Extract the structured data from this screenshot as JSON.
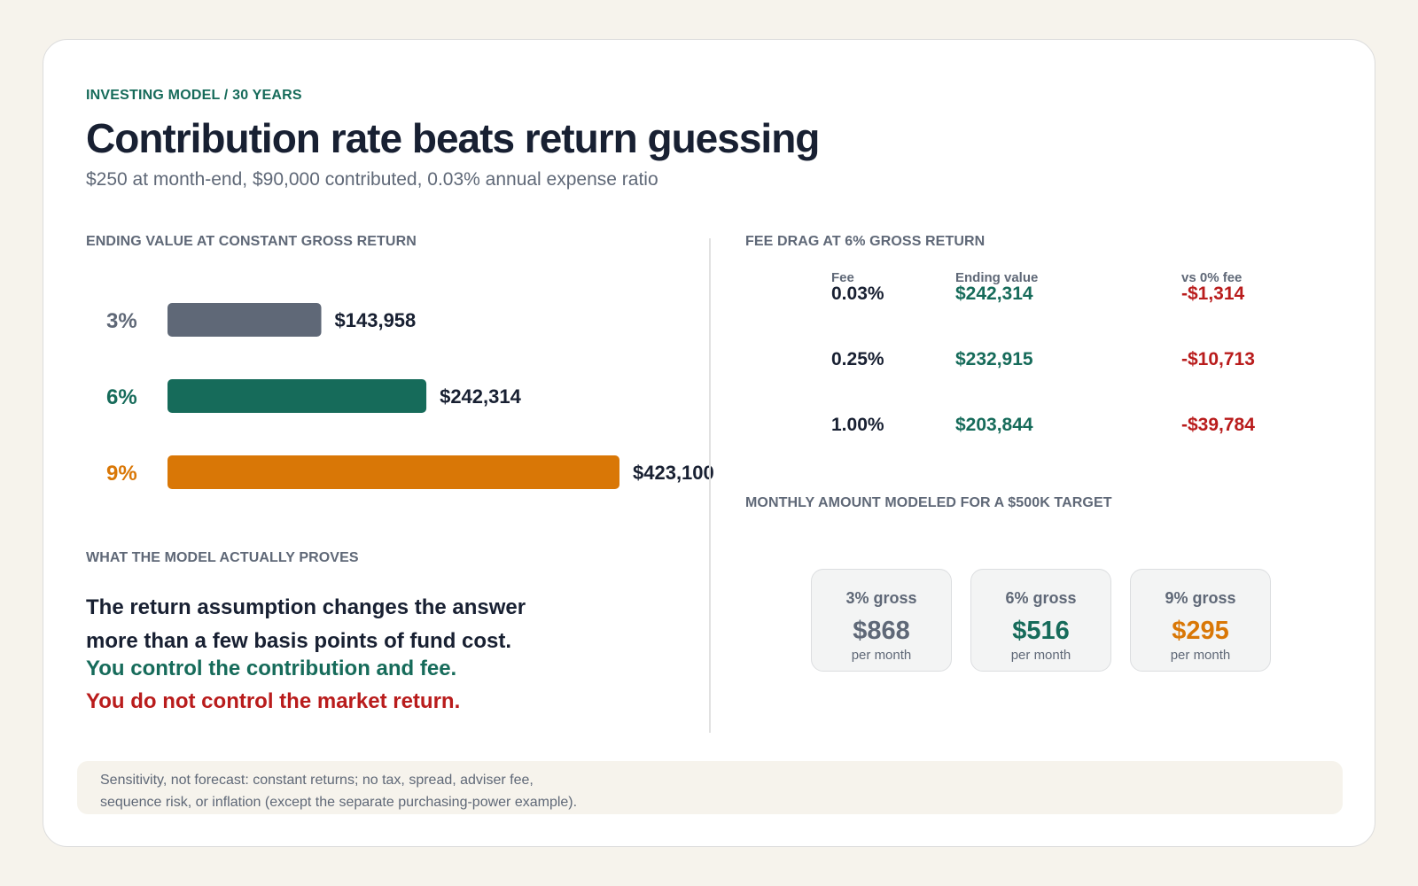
{
  "header": {
    "eyebrow": "INVESTING MODEL / 30 YEARS",
    "title": "Contribution rate beats return guessing",
    "subtitle": "$250 at month-end, $90,000 contributed, 0.03% annual expense ratio"
  },
  "colors": {
    "accent_green": "#166b5a",
    "slate": "#5f6877",
    "orange": "#d97706",
    "red": "#b91c1c",
    "ink": "#182032"
  },
  "chart_data": {
    "type": "bar",
    "title": "ENDING VALUE AT CONSTANT GROSS RETURN",
    "orientation": "horizontal",
    "categories": [
      "3%",
      "6%",
      "9%"
    ],
    "values": [
      143958,
      242314,
      423100
    ],
    "value_labels": [
      "$143,958",
      "$242,314",
      "$423,100"
    ],
    "bar_colors": [
      "#5f6877",
      "#166b5a",
      "#d97706"
    ],
    "xlim": [
      0,
      423100
    ],
    "grid": false
  },
  "fee_table": {
    "label": "FEE DRAG AT 6% GROSS RETURN",
    "headers": [
      "Fee",
      "Ending value",
      "vs 0% fee"
    ],
    "rows": [
      {
        "fee": "0.03%",
        "ending": "$242,314",
        "diff": "-$1,314"
      },
      {
        "fee": "0.25%",
        "ending": "$232,915",
        "diff": "-$10,713"
      },
      {
        "fee": "1.00%",
        "ending": "$203,844",
        "diff": "-$39,784"
      }
    ]
  },
  "monthly": {
    "label": "MONTHLY AMOUNT MODELED FOR A $500K TARGET",
    "cards": [
      {
        "label": "3% gross",
        "value": "$868",
        "unit": "per month"
      },
      {
        "label": "6% gross",
        "value": "$516",
        "unit": "per month"
      },
      {
        "label": "9% gross",
        "value": "$295",
        "unit": "per month"
      }
    ]
  },
  "proof": {
    "label": "WHAT THE MODEL ACTUALLY PROVES",
    "line1": "The return assumption changes the answer",
    "line2": "more than a few basis points of fund cost.",
    "green_line": "You control the contribution and fee.",
    "red_line": "You do not control the market return."
  },
  "note": {
    "line1": "Sensitivity, not forecast: constant returns; no tax, spread, adviser fee,",
    "line2": "sequence risk, or inflation (except the separate purchasing-power example)."
  }
}
